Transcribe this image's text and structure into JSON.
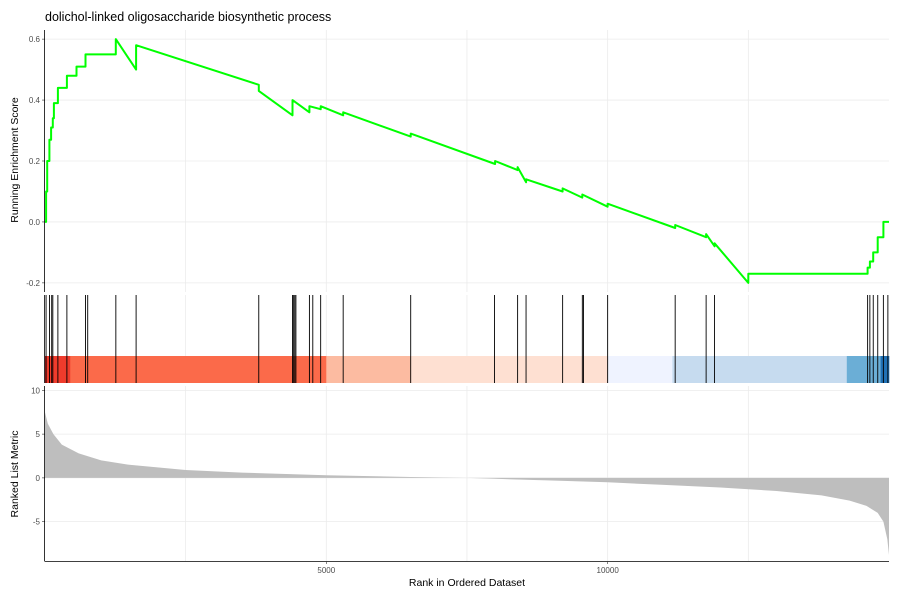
{
  "chart_data": {
    "type": "line",
    "title": "dolichol-linked oligosaccharide biosynthetic process",
    "xlabel": "Rank in Ordered Dataset",
    "xlim": [
      1,
      15000
    ],
    "x_ticks": [
      5000,
      10000
    ],
    "x_tick_labels": [
      "5000",
      "10000"
    ],
    "grid": "vertical major and minor",
    "colors": {
      "running_score": "#00ff00",
      "ranked_metric": "#bebebe",
      "hit_marks": "#000000",
      "gradient": [
        "#a50f15",
        "#cb181d",
        "#ef3b2c",
        "#fb6a4a",
        "#fcbba1",
        "#fee0d2",
        "#eff3ff",
        "#c6dbef",
        "#6baed6",
        "#2171b5"
      ]
    },
    "panels": [
      {
        "name": "running_enrichment",
        "ylabel": "Running Enrichment Score",
        "ylim": [
          -0.23,
          0.63
        ],
        "y_ticks": [
          -0.2,
          0.0,
          0.2,
          0.4,
          0.6
        ],
        "y_tick_labels": [
          "-0.2",
          "0.0",
          "0.2",
          "0.4",
          "0.6"
        ],
        "series": [
          {
            "x": [
              1,
              20,
              20,
              40,
              40,
              80,
              80,
              110,
              110,
              140,
              140,
              160,
              160,
              230,
              230,
              390,
              390,
              560,
              560,
              720,
              720,
              1260,
              1260,
              1620,
              1620,
              3800,
              3800,
              4400,
              4400,
              4700,
              4700,
              4900,
              4900,
              5300,
              5300,
              6500,
              6500,
              8000,
              8000,
              8400,
              8400,
              8550,
              8550,
              9200,
              9200,
              9550,
              9550,
              10000,
              10000,
              11200,
              11200,
              11750,
              11750,
              11900,
              11900,
              12500,
              12500,
              14620,
              14620,
              14660,
              14660,
              14720,
              14720,
              14800,
              14800,
              14900,
              14900,
              14980,
              14980,
              15000
            ],
            "y": [
              0.0,
              0.0,
              0.1,
              0.1,
              0.2,
              0.2,
              0.27,
              0.27,
              0.31,
              0.31,
              0.34,
              0.34,
              0.39,
              0.39,
              0.44,
              0.44,
              0.48,
              0.48,
              0.51,
              0.51,
              0.55,
              0.55,
              0.6,
              0.5,
              0.58,
              0.45,
              0.43,
              0.35,
              0.4,
              0.36,
              0.38,
              0.37,
              0.38,
              0.35,
              0.36,
              0.28,
              0.29,
              0.19,
              0.2,
              0.17,
              0.18,
              0.13,
              0.14,
              0.1,
              0.11,
              0.08,
              0.09,
              0.05,
              0.06,
              -0.02,
              -0.01,
              -0.05,
              -0.04,
              -0.08,
              -0.07,
              -0.2,
              -0.17,
              -0.17,
              -0.15,
              -0.15,
              -0.13,
              -0.13,
              -0.1,
              -0.1,
              -0.05,
              -0.05,
              0.0,
              0.0,
              0.0,
              0.0
            ]
          }
        ]
      },
      {
        "name": "gene_hits",
        "hit_ranks": [
          20,
          80,
          120,
          140,
          230,
          390,
          720,
          760,
          1260,
          1620,
          3800,
          4400,
          4420,
          4440,
          4460,
          4700,
          4760,
          4900,
          5300,
          6500,
          7990,
          8400,
          8550,
          9200,
          9550,
          9570,
          10000,
          11200,
          11750,
          11900,
          14620,
          14660,
          14720,
          14800,
          14900,
          14980
        ],
        "gradient_breaks": [
          0,
          2,
          30,
          450,
          5000,
          6500,
          10000,
          11150,
          14250,
          14850,
          15000
        ],
        "gradient_colors": [
          "#a50f15",
          "#cb181d",
          "#ef3b2c",
          "#fb6a4a",
          "#fcbba1",
          "#fee0d2",
          "#eff3ff",
          "#c6dbef",
          "#6baed6",
          "#2171b5"
        ]
      },
      {
        "name": "ranked_metric",
        "type": "area",
        "ylabel": "Ranked List Metric",
        "ylim": [
          -9.5,
          10.5
        ],
        "y_ticks": [
          -5,
          0,
          5,
          10
        ],
        "y_tick_labels": [
          "-5",
          "0",
          "5",
          "10"
        ],
        "series": [
          {
            "x": [
              1,
              50,
              150,
              300,
              600,
              1000,
              1500,
              2500,
              3500,
              5000,
              6500,
              7500,
              8000,
              9000,
              10000,
              11000,
              12000,
              13000,
              13800,
              14300,
              14600,
              14800,
              14900,
              14970,
              15000
            ],
            "y": [
              7.5,
              6.2,
              5.0,
              3.8,
              2.8,
              2.0,
              1.5,
              0.9,
              0.6,
              0.3,
              0.1,
              0.0,
              -0.1,
              -0.3,
              -0.5,
              -0.8,
              -1.1,
              -1.5,
              -2.0,
              -2.6,
              -3.2,
              -4.0,
              -5.0,
              -7.0,
              -8.8
            ]
          }
        ]
      }
    ]
  }
}
